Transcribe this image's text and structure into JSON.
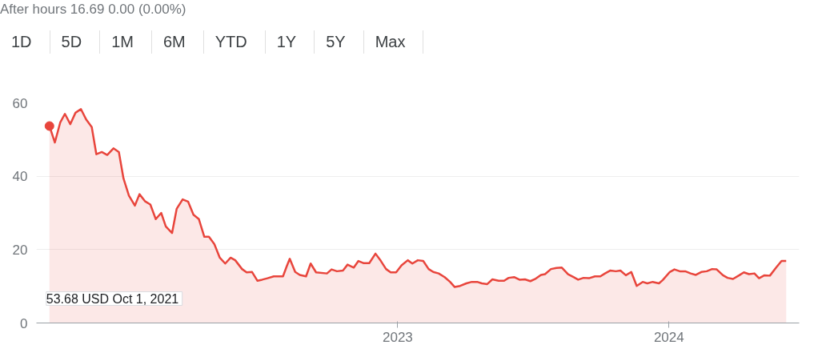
{
  "chart_data": {
    "type": "area",
    "subtitle": "After hours 16.69 0.00 (0.00%)",
    "annotations": [
      "1D",
      "5D",
      "1M",
      "6M",
      "YTD",
      "1Y",
      "5Y",
      "Max",
      "53.68 USD  Oct 1, 2021"
    ],
    "xlim": [
      2021.668,
      2024.48
    ],
    "xticks": [
      2023,
      2024
    ],
    "ylim": [
      0,
      60
    ],
    "yticks": [
      0,
      20,
      40,
      60
    ],
    "grid": "y",
    "series": [
      {
        "color": "#e8453c",
        "x": [
          2021.716,
          2021.736,
          2021.756,
          2021.773,
          2021.793,
          2021.812,
          2021.832,
          2021.852,
          2021.872,
          2021.889,
          2021.909,
          2021.929,
          2021.952,
          2021.972,
          2021.989,
          2022.009,
          2022.031,
          2022.048,
          2022.068,
          2022.088,
          2022.108,
          2022.128,
          2022.145,
          2022.168,
          2022.185,
          2022.207,
          2022.227,
          2022.247,
          2022.267,
          2022.287,
          2022.304,
          2022.324,
          2022.344,
          2022.364,
          2022.384,
          2022.401,
          2022.426,
          2022.443,
          2022.463,
          2022.483,
          2022.5,
          2022.52,
          2022.543,
          2022.577,
          2022.591,
          2022.602,
          2022.622,
          2022.639,
          2022.662,
          2022.679,
          2022.699,
          2022.739,
          2022.756,
          2022.776,
          2022.798,
          2022.815,
          2022.838,
          2022.855,
          2022.875,
          2022.895,
          2022.918,
          2022.937,
          2022.957,
          2022.974,
          2022.994,
          2023.014,
          2023.037,
          2023.054,
          2023.074,
          2023.094,
          2023.114,
          2023.131,
          2023.151,
          2023.173,
          2023.193,
          2023.21,
          2023.23,
          2023.253,
          2023.273,
          2023.293,
          2023.31,
          2023.33,
          2023.349,
          2023.372,
          2023.392,
          2023.409,
          2023.429,
          2023.449,
          2023.469,
          2023.489,
          2023.509,
          2023.528,
          2023.543,
          2023.565,
          2023.585,
          2023.605,
          2023.628,
          2023.648,
          2023.665,
          2023.685,
          2023.705,
          2023.727,
          2023.747,
          2023.764,
          2023.784,
          2023.804,
          2023.821,
          2023.841,
          2023.861,
          2023.881,
          2023.903,
          2023.92,
          2023.94,
          2023.963,
          2023.977,
          2024.003,
          2024.02,
          2024.04,
          2024.06,
          2024.08,
          2024.099,
          2024.119,
          2024.139,
          2024.159,
          2024.176,
          2024.199,
          2024.216,
          2024.236,
          2024.259,
          2024.276,
          2024.295,
          2024.315,
          2024.332,
          2024.352,
          2024.372,
          2024.395,
          2024.415,
          2024.432
        ],
        "values": [
          53.68,
          49.2,
          54.7,
          57.0,
          54.2,
          57.3,
          58.3,
          55.4,
          53.4,
          46.0,
          46.6,
          45.8,
          47.6,
          46.6,
          39.4,
          34.7,
          32.0,
          35.1,
          33.2,
          32.3,
          28.3,
          30.0,
          26.3,
          24.5,
          31.1,
          33.7,
          33.1,
          29.5,
          28.3,
          23.5,
          23.5,
          21.5,
          17.8,
          16.2,
          17.8,
          17.1,
          14.7,
          13.8,
          13.9,
          11.5,
          11.8,
          12.2,
          12.7,
          12.7,
          15.5,
          17.5,
          13.9,
          13.1,
          12.7,
          16.2,
          13.8,
          13.5,
          14.6,
          14.1,
          14.3,
          15.9,
          15.1,
          16.9,
          16.3,
          16.3,
          18.9,
          17.0,
          14.7,
          13.8,
          13.8,
          15.7,
          17.1,
          16.2,
          17.1,
          16.9,
          14.7,
          13.9,
          13.5,
          12.5,
          11.2,
          9.8,
          10.1,
          10.8,
          11.2,
          11.2,
          10.8,
          10.6,
          11.9,
          11.5,
          11.5,
          12.3,
          12.5,
          11.8,
          11.9,
          11.4,
          12.1,
          13.1,
          13.3,
          14.7,
          15.0,
          15.1,
          13.3,
          12.5,
          11.8,
          12.3,
          12.2,
          12.7,
          12.7,
          13.5,
          14.3,
          14.1,
          14.3,
          13.0,
          13.9,
          10.1,
          11.2,
          10.8,
          11.2,
          10.8,
          11.7,
          13.9,
          14.6,
          14.1,
          14.1,
          13.5,
          13.1,
          13.9,
          14.1,
          14.7,
          14.6,
          13.0,
          12.3,
          12.0,
          13.0,
          13.8,
          13.3,
          13.5,
          12.2,
          13.0,
          12.9,
          15.1,
          16.9,
          16.9
        ]
      }
    ]
  }
}
